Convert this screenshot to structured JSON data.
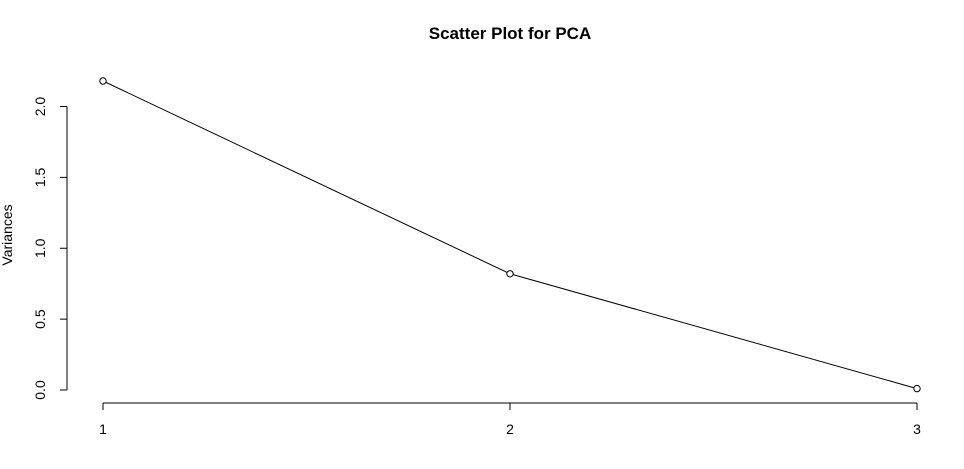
{
  "chart_data": {
    "type": "line",
    "title": "Scatter Plot for PCA",
    "xlabel": "",
    "ylabel": "Variances",
    "x": [
      1,
      2,
      3
    ],
    "values": [
      2.18,
      0.82,
      0.01
    ],
    "x_ticks": [
      "1",
      "2",
      "3"
    ],
    "y_ticks": [
      "0.0",
      "0.5",
      "1.0",
      "1.5",
      "2.0"
    ],
    "xlim": [
      1,
      3
    ],
    "ylim": [
      0,
      2.18
    ],
    "grid": false,
    "markers": "open-circle",
    "line_color": "#000000"
  }
}
